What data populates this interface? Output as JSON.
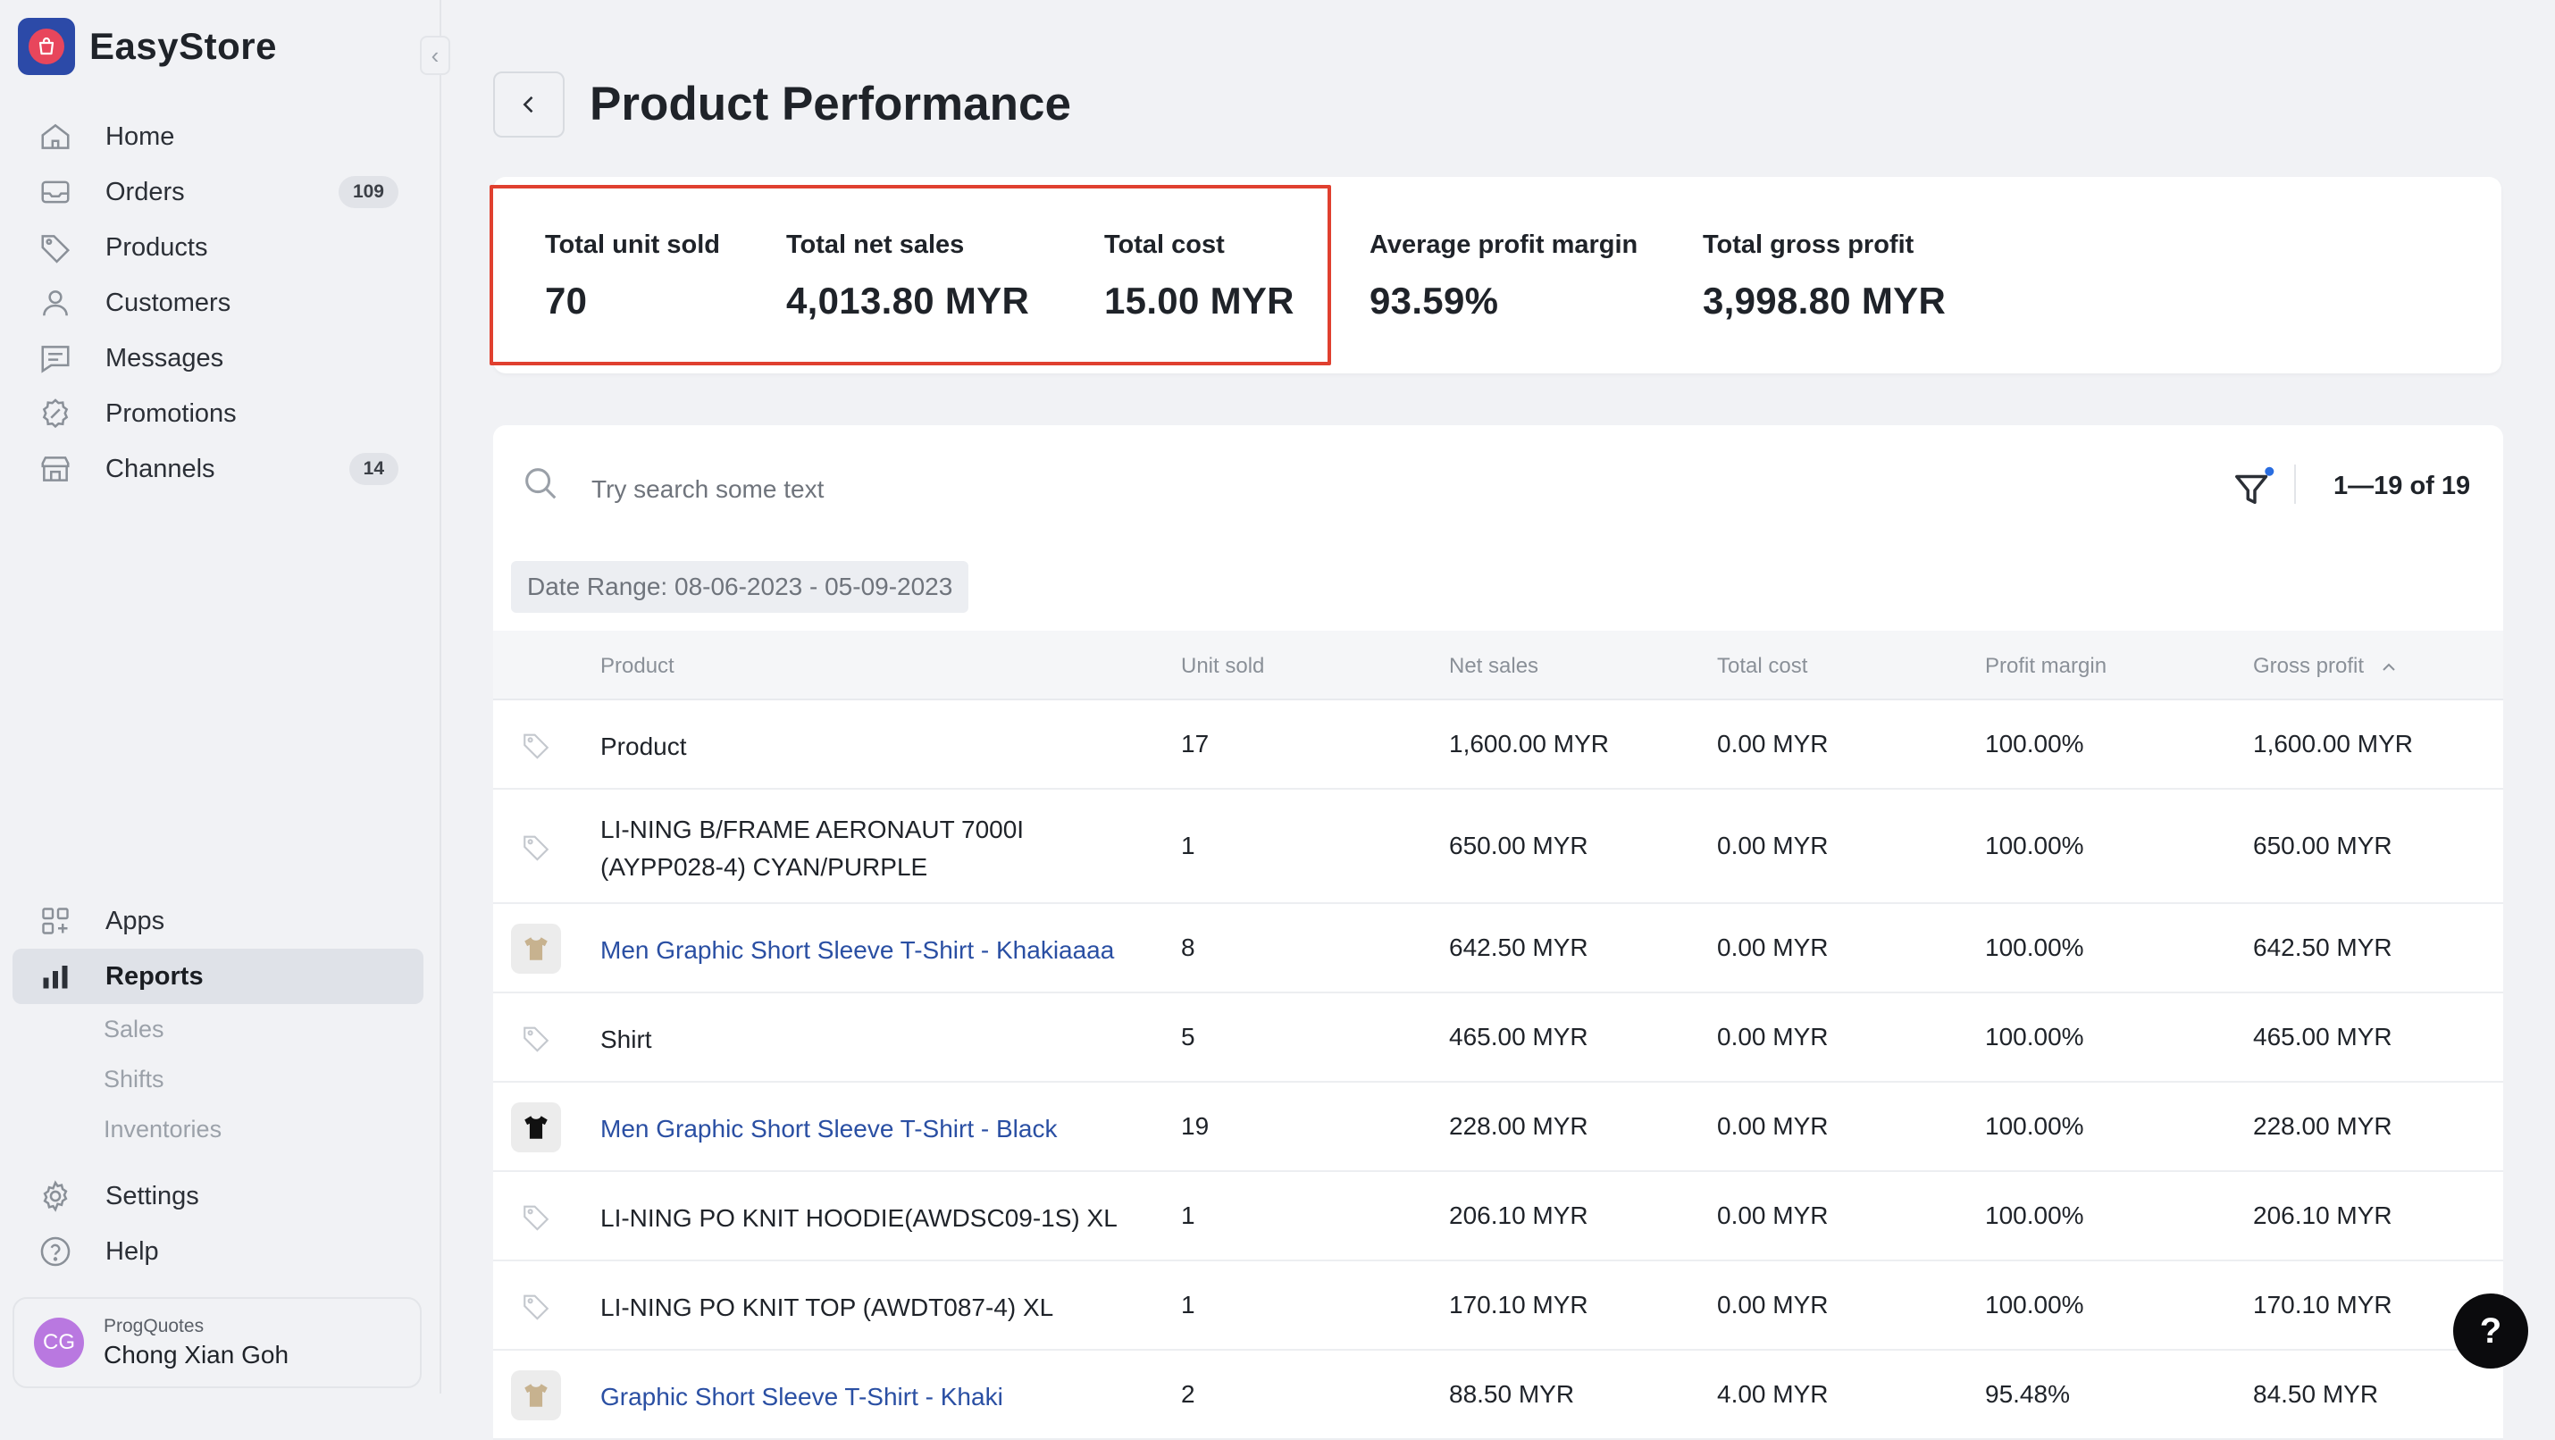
{
  "brand": {
    "name": "EasyStore"
  },
  "sidebar": {
    "top_items": [
      {
        "label": "Home",
        "icon": "home-icon"
      },
      {
        "label": "Orders",
        "icon": "inbox-icon",
        "badge": "109"
      },
      {
        "label": "Products",
        "icon": "tag-icon"
      },
      {
        "label": "Customers",
        "icon": "user-icon"
      },
      {
        "label": "Messages",
        "icon": "message-icon"
      },
      {
        "label": "Promotions",
        "icon": "promotion-icon"
      },
      {
        "label": "Channels",
        "icon": "store-icon",
        "badge": "14"
      }
    ],
    "apps_label": "Apps",
    "reports_label": "Reports",
    "report_sub_items": [
      "Sales",
      "Shifts",
      "Inventories"
    ],
    "settings_label": "Settings",
    "help_label": "Help"
  },
  "user": {
    "initials": "CG",
    "org": "ProgQuotes",
    "name": "Chong Xian Goh"
  },
  "page": {
    "title": "Product Performance"
  },
  "summary": [
    {
      "label": "Total unit sold",
      "value": "70"
    },
    {
      "label": "Total net sales",
      "value": "4,013.80 MYR"
    },
    {
      "label": "Total cost",
      "value": "15.00 MYR"
    },
    {
      "label": "Average profit margin",
      "value": "93.59%"
    },
    {
      "label": "Total gross profit",
      "value": "3,998.80 MYR"
    }
  ],
  "search": {
    "placeholder": "Try search some text",
    "value": ""
  },
  "pager": "1—19 of 19",
  "date_range": "Date Range: 08-06-2023 - 05-09-2023",
  "table": {
    "headers": [
      "Product",
      "Unit sold",
      "Net sales",
      "Total cost",
      "Profit margin",
      "Gross profit"
    ],
    "sort_indicator": "^",
    "rows": [
      {
        "thumb": "tag",
        "name": [
          "Product"
        ],
        "link": false,
        "unit": "17",
        "net": "1,600.00 MYR",
        "cost": "0.00 MYR",
        "margin": "100.00%",
        "gross": "1,600.00 MYR"
      },
      {
        "thumb": "tag",
        "name": [
          "LI-NING B/FRAME AERONAUT 7000I",
          "(AYPP028-4) CYAN/PURPLE"
        ],
        "link": false,
        "unit": "1",
        "net": "650.00 MYR",
        "cost": "0.00 MYR",
        "margin": "100.00%",
        "gross": "650.00 MYR"
      },
      {
        "thumb": "khaki",
        "name": [
          "Men Graphic Short Sleeve T-Shirt - Khakiaaaa"
        ],
        "link": true,
        "unit": "8",
        "net": "642.50 MYR",
        "cost": "0.00 MYR",
        "margin": "100.00%",
        "gross": "642.50 MYR"
      },
      {
        "thumb": "tag",
        "name": [
          "Shirt"
        ],
        "link": false,
        "unit": "5",
        "net": "465.00 MYR",
        "cost": "0.00 MYR",
        "margin": "100.00%",
        "gross": "465.00 MYR"
      },
      {
        "thumb": "black",
        "name": [
          "Men Graphic Short Sleeve T-Shirt - Black"
        ],
        "link": true,
        "unit": "19",
        "net": "228.00 MYR",
        "cost": "0.00 MYR",
        "margin": "100.00%",
        "gross": "228.00 MYR"
      },
      {
        "thumb": "tag",
        "name": [
          "LI-NING PO KNIT HOODIE(AWDSC09-1S) XL"
        ],
        "link": false,
        "unit": "1",
        "net": "206.10 MYR",
        "cost": "0.00 MYR",
        "margin": "100.00%",
        "gross": "206.10 MYR"
      },
      {
        "thumb": "tag",
        "name": [
          "LI-NING PO KNIT TOP (AWDT087-4) XL"
        ],
        "link": false,
        "unit": "1",
        "net": "170.10 MYR",
        "cost": "0.00 MYR",
        "margin": "100.00%",
        "gross": "170.10 MYR"
      },
      {
        "thumb": "khaki",
        "name": [
          "Graphic Short Sleeve T-Shirt - Khaki"
        ],
        "link": true,
        "unit": "2",
        "net": "88.50 MYR",
        "cost": "4.00 MYR",
        "margin": "95.48%",
        "gross": "84.50 MYR"
      }
    ]
  },
  "help_button": "?",
  "colors": {
    "accent": "#2a4fa3",
    "highlight": "#e0402f",
    "brand": "#2c4aa8"
  }
}
